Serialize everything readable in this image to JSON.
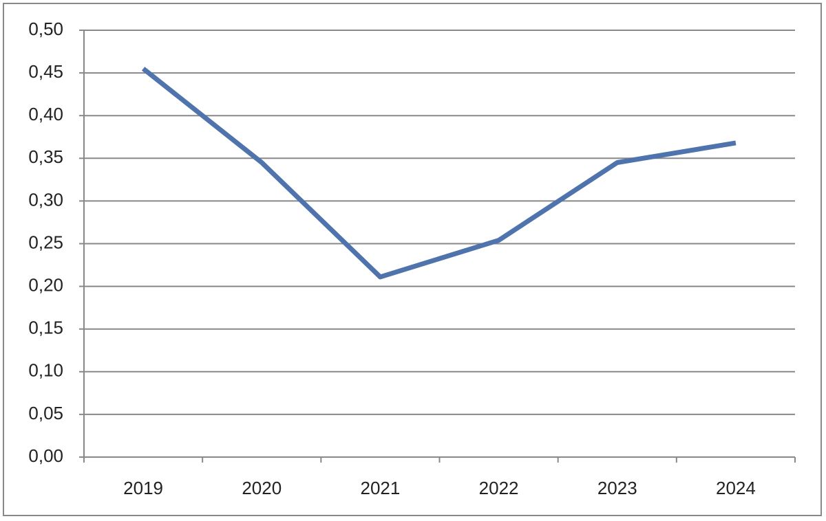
{
  "chart_data": {
    "type": "line",
    "categories": [
      "2019",
      "2020",
      "2021",
      "2022",
      "2023",
      "2024"
    ],
    "series": [
      {
        "color": "#4f73ad",
        "values": [
          0.455,
          0.345,
          0.211,
          0.254,
          0.345,
          0.368
        ]
      }
    ],
    "ylim": [
      0,
      0.5
    ],
    "yticks": [
      {
        "value": 0,
        "label": "0,00"
      },
      {
        "value": 0.05,
        "label": "0,05"
      },
      {
        "value": 0.1,
        "label": "0,10"
      },
      {
        "value": 0.15,
        "label": "0,15"
      },
      {
        "value": 0.2,
        "label": "0,20"
      },
      {
        "value": 0.25,
        "label": "0,25"
      },
      {
        "value": 0.3,
        "label": "0,30"
      },
      {
        "value": 0.35,
        "label": "0,35"
      },
      {
        "value": 0.4,
        "label": "0,40"
      },
      {
        "value": 0.45,
        "label": "0,45"
      },
      {
        "value": 0.5,
        "label": "0,50"
      }
    ],
    "grid": true
  }
}
